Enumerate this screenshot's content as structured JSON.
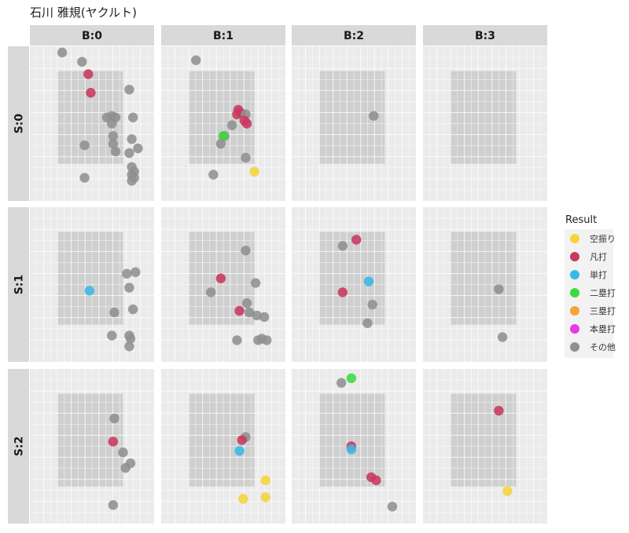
{
  "title": "石川 雅規(ヤクルト)",
  "colors": {
    "panel_bg": "#ebebeb",
    "grid": "#ffffff",
    "zone": "#cfcfcf",
    "strip_bg": "#d9d9d9",
    "background": "#ffffff"
  },
  "chart_data": {
    "type": "scatter",
    "title": "石川 雅規(ヤクルト)",
    "facet_columns": [
      "B:0",
      "B:1",
      "B:2",
      "B:3"
    ],
    "facet_rows": [
      "S:0",
      "S:1",
      "S:2"
    ],
    "xlim": [
      0,
      1
    ],
    "ylim": [
      0,
      1
    ],
    "strike_zone": {
      "x": [
        0.22,
        0.75
      ],
      "y": [
        0.24,
        0.84
      ]
    },
    "grid": true,
    "legend": {
      "title": "Result",
      "position": "right",
      "entries": [
        {
          "label": "空振り",
          "color": "#f5d33a"
        },
        {
          "label": "凡打",
          "color": "#c8395e"
        },
        {
          "label": "単打",
          "color": "#3ab8e6"
        },
        {
          "label": "二塁打",
          "color": "#3ed93e"
        },
        {
          "label": "三塁打",
          "color": "#f5a33a"
        },
        {
          "label": "本塁打",
          "color": "#e83ae3"
        },
        {
          "label": "その他",
          "color": "#8f8f8f"
        }
      ]
    },
    "points": [
      {
        "row": 0,
        "col": 0,
        "x": 0.26,
        "y": 0.96,
        "result": "その他"
      },
      {
        "row": 0,
        "col": 0,
        "x": 0.42,
        "y": 0.9,
        "result": "その他"
      },
      {
        "row": 0,
        "col": 0,
        "x": 0.47,
        "y": 0.82,
        "result": "凡打"
      },
      {
        "row": 0,
        "col": 0,
        "x": 0.49,
        "y": 0.7,
        "result": "凡打"
      },
      {
        "row": 0,
        "col": 0,
        "x": 0.8,
        "y": 0.72,
        "result": "その他"
      },
      {
        "row": 0,
        "col": 0,
        "x": 0.62,
        "y": 0.54,
        "result": "その他"
      },
      {
        "row": 0,
        "col": 0,
        "x": 0.66,
        "y": 0.55,
        "result": "その他"
      },
      {
        "row": 0,
        "col": 0,
        "x": 0.69,
        "y": 0.54,
        "result": "その他"
      },
      {
        "row": 0,
        "col": 0,
        "x": 0.66,
        "y": 0.5,
        "result": "その他"
      },
      {
        "row": 0,
        "col": 0,
        "x": 0.83,
        "y": 0.54,
        "result": "その他"
      },
      {
        "row": 0,
        "col": 0,
        "x": 0.67,
        "y": 0.42,
        "result": "その他"
      },
      {
        "row": 0,
        "col": 0,
        "x": 0.82,
        "y": 0.4,
        "result": "その他"
      },
      {
        "row": 0,
        "col": 0,
        "x": 0.44,
        "y": 0.36,
        "result": "その他"
      },
      {
        "row": 0,
        "col": 0,
        "x": 0.67,
        "y": 0.37,
        "result": "その他"
      },
      {
        "row": 0,
        "col": 0,
        "x": 0.69,
        "y": 0.32,
        "result": "その他"
      },
      {
        "row": 0,
        "col": 0,
        "x": 0.8,
        "y": 0.31,
        "result": "その他"
      },
      {
        "row": 0,
        "col": 0,
        "x": 0.87,
        "y": 0.34,
        "result": "その他"
      },
      {
        "row": 0,
        "col": 0,
        "x": 0.82,
        "y": 0.22,
        "result": "その他"
      },
      {
        "row": 0,
        "col": 0,
        "x": 0.84,
        "y": 0.19,
        "result": "その他"
      },
      {
        "row": 0,
        "col": 0,
        "x": 0.82,
        "y": 0.17,
        "result": "その他"
      },
      {
        "row": 0,
        "col": 0,
        "x": 0.84,
        "y": 0.15,
        "result": "その他"
      },
      {
        "row": 0,
        "col": 0,
        "x": 0.82,
        "y": 0.13,
        "result": "その他"
      },
      {
        "row": 0,
        "col": 0,
        "x": 0.44,
        "y": 0.15,
        "result": "その他"
      },
      {
        "row": 0,
        "col": 1,
        "x": 0.28,
        "y": 0.91,
        "result": "その他"
      },
      {
        "row": 0,
        "col": 1,
        "x": 0.62,
        "y": 0.59,
        "result": "凡打"
      },
      {
        "row": 0,
        "col": 1,
        "x": 0.61,
        "y": 0.56,
        "result": "凡打"
      },
      {
        "row": 0,
        "col": 1,
        "x": 0.64,
        "y": 0.57,
        "result": "凡打"
      },
      {
        "row": 0,
        "col": 1,
        "x": 0.68,
        "y": 0.56,
        "result": "その他"
      },
      {
        "row": 0,
        "col": 1,
        "x": 0.67,
        "y": 0.52,
        "result": "凡打"
      },
      {
        "row": 0,
        "col": 1,
        "x": 0.69,
        "y": 0.5,
        "result": "凡打"
      },
      {
        "row": 0,
        "col": 1,
        "x": 0.57,
        "y": 0.49,
        "result": "その他"
      },
      {
        "row": 0,
        "col": 1,
        "x": 0.51,
        "y": 0.42,
        "result": "その他"
      },
      {
        "row": 0,
        "col": 1,
        "x": 0.5,
        "y": 0.42,
        "result": "二塁打"
      },
      {
        "row": 0,
        "col": 1,
        "x": 0.48,
        "y": 0.37,
        "result": "その他"
      },
      {
        "row": 0,
        "col": 1,
        "x": 0.68,
        "y": 0.28,
        "result": "その他"
      },
      {
        "row": 0,
        "col": 1,
        "x": 0.75,
        "y": 0.19,
        "result": "空振り"
      },
      {
        "row": 0,
        "col": 1,
        "x": 0.42,
        "y": 0.17,
        "result": "その他"
      },
      {
        "row": 0,
        "col": 2,
        "x": 0.66,
        "y": 0.55,
        "result": "その他"
      },
      {
        "row": 1,
        "col": 0,
        "x": 0.48,
        "y": 0.46,
        "result": "単打"
      },
      {
        "row": 1,
        "col": 0,
        "x": 0.78,
        "y": 0.57,
        "result": "その他"
      },
      {
        "row": 1,
        "col": 0,
        "x": 0.85,
        "y": 0.58,
        "result": "その他"
      },
      {
        "row": 1,
        "col": 0,
        "x": 0.8,
        "y": 0.48,
        "result": "その他"
      },
      {
        "row": 1,
        "col": 0,
        "x": 0.83,
        "y": 0.34,
        "result": "その他"
      },
      {
        "row": 1,
        "col": 0,
        "x": 0.68,
        "y": 0.32,
        "result": "その他"
      },
      {
        "row": 1,
        "col": 0,
        "x": 0.66,
        "y": 0.17,
        "result": "その他"
      },
      {
        "row": 1,
        "col": 0,
        "x": 0.8,
        "y": 0.17,
        "result": "その他"
      },
      {
        "row": 1,
        "col": 0,
        "x": 0.81,
        "y": 0.15,
        "result": "その他"
      },
      {
        "row": 1,
        "col": 0,
        "x": 0.8,
        "y": 0.1,
        "result": "その他"
      },
      {
        "row": 1,
        "col": 1,
        "x": 0.68,
        "y": 0.72,
        "result": "その他"
      },
      {
        "row": 1,
        "col": 1,
        "x": 0.48,
        "y": 0.54,
        "result": "凡打"
      },
      {
        "row": 1,
        "col": 1,
        "x": 0.76,
        "y": 0.51,
        "result": "その他"
      },
      {
        "row": 1,
        "col": 1,
        "x": 0.4,
        "y": 0.45,
        "result": "その他"
      },
      {
        "row": 1,
        "col": 1,
        "x": 0.69,
        "y": 0.38,
        "result": "その他"
      },
      {
        "row": 1,
        "col": 1,
        "x": 0.63,
        "y": 0.33,
        "result": "凡打"
      },
      {
        "row": 1,
        "col": 1,
        "x": 0.71,
        "y": 0.32,
        "result": "その他"
      },
      {
        "row": 1,
        "col": 1,
        "x": 0.77,
        "y": 0.3,
        "result": "その他"
      },
      {
        "row": 1,
        "col": 1,
        "x": 0.83,
        "y": 0.29,
        "result": "その他"
      },
      {
        "row": 1,
        "col": 1,
        "x": 0.61,
        "y": 0.14,
        "result": "その他"
      },
      {
        "row": 1,
        "col": 1,
        "x": 0.78,
        "y": 0.14,
        "result": "その他"
      },
      {
        "row": 1,
        "col": 1,
        "x": 0.81,
        "y": 0.15,
        "result": "その他"
      },
      {
        "row": 1,
        "col": 1,
        "x": 0.85,
        "y": 0.14,
        "result": "その他"
      },
      {
        "row": 1,
        "col": 2,
        "x": 0.52,
        "y": 0.79,
        "result": "凡打"
      },
      {
        "row": 1,
        "col": 2,
        "x": 0.41,
        "y": 0.75,
        "result": "その他"
      },
      {
        "row": 1,
        "col": 2,
        "x": 0.62,
        "y": 0.52,
        "result": "単打"
      },
      {
        "row": 1,
        "col": 2,
        "x": 0.41,
        "y": 0.45,
        "result": "凡打"
      },
      {
        "row": 1,
        "col": 2,
        "x": 0.65,
        "y": 0.37,
        "result": "その他"
      },
      {
        "row": 1,
        "col": 2,
        "x": 0.61,
        "y": 0.25,
        "result": "その他"
      },
      {
        "row": 1,
        "col": 3,
        "x": 0.61,
        "y": 0.47,
        "result": "その他"
      },
      {
        "row": 1,
        "col": 3,
        "x": 0.64,
        "y": 0.16,
        "result": "その他"
      },
      {
        "row": 2,
        "col": 0,
        "x": 0.68,
        "y": 0.68,
        "result": "その他"
      },
      {
        "row": 2,
        "col": 0,
        "x": 0.67,
        "y": 0.53,
        "result": "凡打"
      },
      {
        "row": 2,
        "col": 0,
        "x": 0.75,
        "y": 0.46,
        "result": "その他"
      },
      {
        "row": 2,
        "col": 0,
        "x": 0.81,
        "y": 0.39,
        "result": "その他"
      },
      {
        "row": 2,
        "col": 0,
        "x": 0.77,
        "y": 0.36,
        "result": "その他"
      },
      {
        "row": 2,
        "col": 0,
        "x": 0.67,
        "y": 0.12,
        "result": "その他"
      },
      {
        "row": 2,
        "col": 1,
        "x": 0.68,
        "y": 0.56,
        "result": "その他"
      },
      {
        "row": 2,
        "col": 1,
        "x": 0.65,
        "y": 0.54,
        "result": "凡打"
      },
      {
        "row": 2,
        "col": 1,
        "x": 0.63,
        "y": 0.47,
        "result": "単打"
      },
      {
        "row": 2,
        "col": 1,
        "x": 0.84,
        "y": 0.28,
        "result": "空振り"
      },
      {
        "row": 2,
        "col": 1,
        "x": 0.66,
        "y": 0.16,
        "result": "空振り"
      },
      {
        "row": 2,
        "col": 1,
        "x": 0.84,
        "y": 0.17,
        "result": "空振り"
      },
      {
        "row": 2,
        "col": 2,
        "x": 0.48,
        "y": 0.94,
        "result": "二塁打"
      },
      {
        "row": 2,
        "col": 2,
        "x": 0.4,
        "y": 0.91,
        "result": "その他"
      },
      {
        "row": 2,
        "col": 2,
        "x": 0.48,
        "y": 0.5,
        "result": "凡打"
      },
      {
        "row": 2,
        "col": 2,
        "x": 0.48,
        "y": 0.48,
        "result": "単打"
      },
      {
        "row": 2,
        "col": 2,
        "x": 0.64,
        "y": 0.3,
        "result": "凡打"
      },
      {
        "row": 2,
        "col": 2,
        "x": 0.68,
        "y": 0.28,
        "result": "凡打"
      },
      {
        "row": 2,
        "col": 2,
        "x": 0.81,
        "y": 0.11,
        "result": "その他"
      },
      {
        "row": 2,
        "col": 3,
        "x": 0.61,
        "y": 0.73,
        "result": "凡打"
      },
      {
        "row": 2,
        "col": 3,
        "x": 0.68,
        "y": 0.21,
        "result": "空振り"
      }
    ]
  }
}
